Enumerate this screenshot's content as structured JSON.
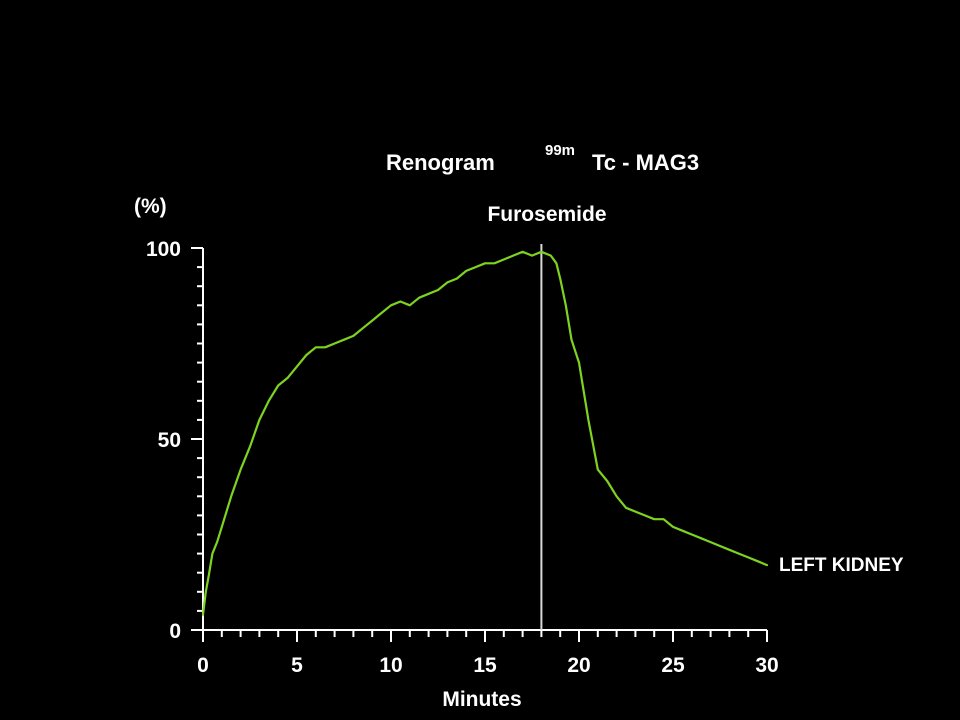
{
  "chart_data": {
    "type": "line",
    "title": {
      "main": "Renogram",
      "superscript": "99m",
      "tracer": "Tc - MAG3"
    },
    "xlabel": "Minutes",
    "ylabel": "(%)",
    "xlim": [
      0,
      30
    ],
    "ylim": [
      0,
      100
    ],
    "x_ticks": [
      0,
      5,
      10,
      15,
      20,
      25,
      30
    ],
    "y_ticks": [
      0,
      50,
      100
    ],
    "x_tick_labels": [
      "0",
      "5",
      "10",
      "15",
      "20",
      "25",
      "30"
    ],
    "y_tick_labels": [
      "0",
      "50",
      "100"
    ],
    "grid": false,
    "annotation": {
      "label": "Furosemide",
      "x": 18
    },
    "series": [
      {
        "name": "LEFT KIDNEY",
        "color": "#7ed321",
        "x": [
          0,
          0.15,
          0.3,
          0.5,
          0.75,
          1,
          1.5,
          2,
          2.5,
          3,
          3.5,
          4,
          4.5,
          5,
          5.5,
          6,
          6.5,
          7,
          7.5,
          8,
          8.5,
          9,
          9.5,
          10,
          10.5,
          11,
          11.5,
          12,
          12.5,
          13,
          13.5,
          14,
          14.5,
          15,
          15.5,
          16,
          16.5,
          17,
          17.5,
          18,
          18.5,
          18.8,
          19,
          19.3,
          19.6,
          20,
          20.5,
          21,
          21.5,
          22,
          22.5,
          23,
          23.5,
          24,
          24.5,
          25,
          25.5,
          26,
          26.5,
          27,
          27.5,
          28,
          28.5,
          29,
          29.5,
          30
        ],
        "values": [
          4,
          10,
          14,
          20,
          23,
          27,
          35,
          42,
          48,
          55,
          60,
          64,
          66,
          69,
          72,
          74,
          74,
          75,
          76,
          77,
          79,
          81,
          83,
          85,
          86,
          85,
          87,
          88,
          89,
          91,
          92,
          94,
          95,
          96,
          96,
          97,
          98,
          99,
          98,
          99,
          98,
          96,
          92,
          85,
          76,
          70,
          55,
          42,
          39,
          35,
          32,
          31,
          30,
          29,
          29,
          27,
          26,
          25,
          24,
          23,
          22,
          21,
          20,
          19,
          18,
          17
        ]
      }
    ]
  }
}
